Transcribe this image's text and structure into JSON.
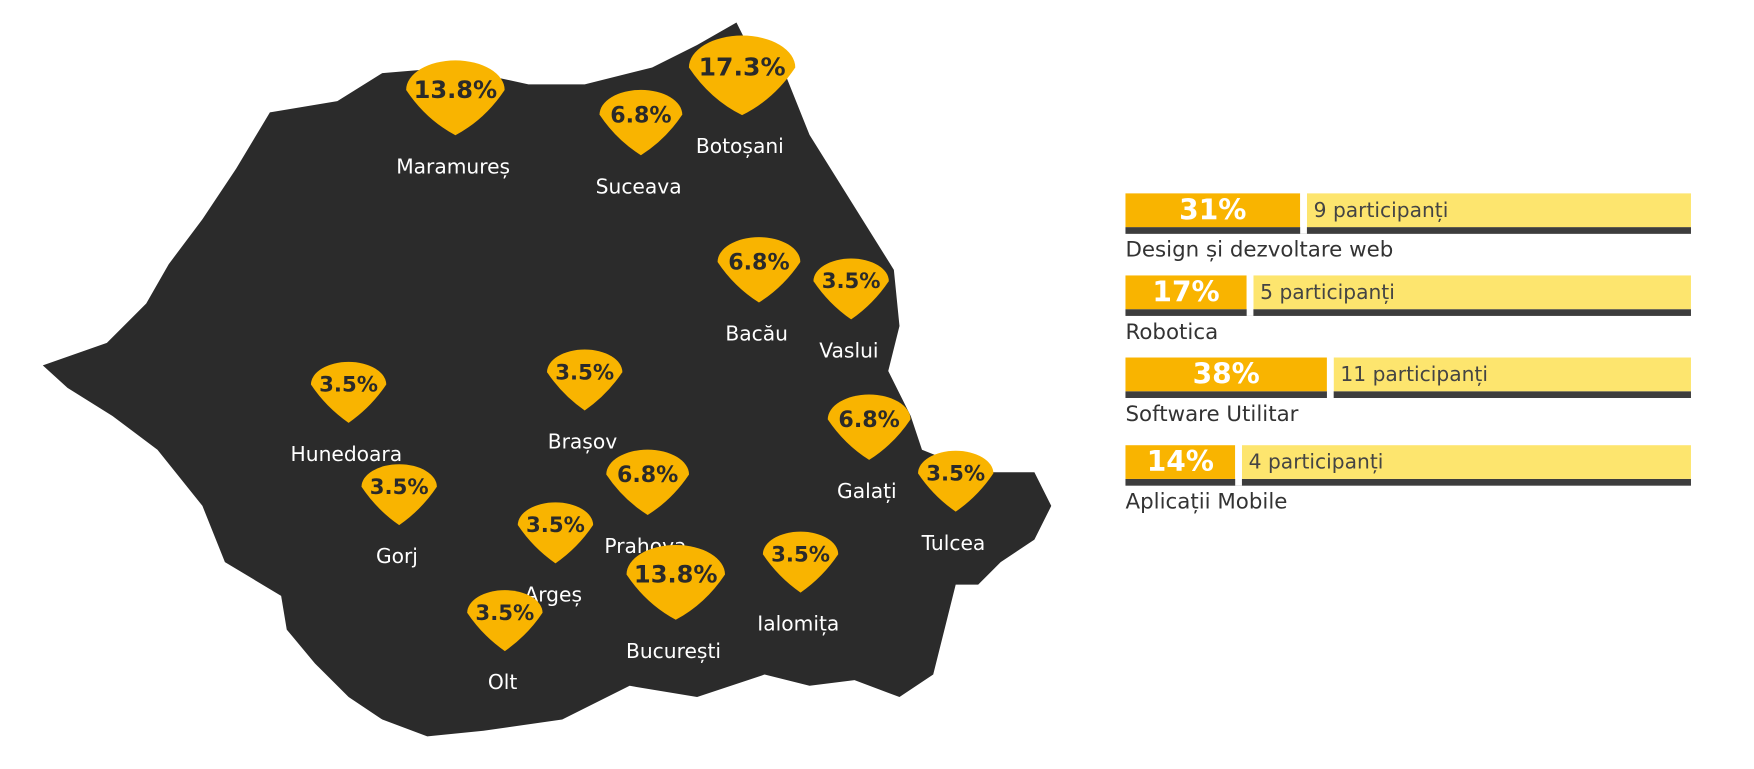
{
  "regions": [
    {
      "name": "Maramureș",
      "share": {
        "value": 13.8,
        "label": "13.8%"
      }
    },
    {
      "name": "Suceava",
      "share": {
        "value": 6.8,
        "label": "6.8%"
      }
    },
    {
      "name": "Botoșani",
      "share": {
        "value": 17.3,
        "label": "17.3%"
      }
    },
    {
      "name": "Bacău",
      "share": {
        "value": 6.8,
        "label": "6.8%"
      }
    },
    {
      "name": "Vaslui",
      "share": {
        "value": 3.5,
        "label": "3.5%"
      }
    },
    {
      "name": "Hunedoara",
      "share": {
        "value": 3.5,
        "label": "3.5%"
      }
    },
    {
      "name": "Brașov",
      "share": {
        "value": 3.5,
        "label": "3.5%"
      }
    },
    {
      "name": "Galați",
      "share": {
        "value": 6.8,
        "label": "6.8%"
      }
    },
    {
      "name": "Tulcea",
      "share": {
        "value": 3.5,
        "label": "3.5%"
      }
    },
    {
      "name": "Gorj",
      "share": {
        "value": 3.5,
        "label": "3.5%"
      }
    },
    {
      "name": "Prahova",
      "share": {
        "value": 6.8,
        "label": "6.8%"
      }
    },
    {
      "name": "Argeș",
      "share": {
        "value": 3.5,
        "label": "3.5%"
      }
    },
    {
      "name": "București",
      "share": {
        "value": 13.8,
        "label": "13.8%"
      }
    },
    {
      "name": "Ialomița",
      "share": {
        "value": 3.5,
        "label": "3.5%"
      }
    },
    {
      "name": "Olt",
      "share": {
        "value": 3.5,
        "label": "3.5%"
      }
    }
  ],
  "sections": [
    {
      "name": "Design și dezvoltare web",
      "share": {
        "value": 31,
        "label": "31%"
      },
      "participants": "9 participanți"
    },
    {
      "name": "Robotica",
      "share": {
        "value": 17,
        "label": "17%"
      },
      "participants": "5 participanți"
    },
    {
      "name": "Software Utilitar",
      "share": {
        "value": 38,
        "label": "38%"
      },
      "participants": "11 participanți"
    },
    {
      "name": "Aplicații Mobile",
      "share": {
        "value": 14,
        "label": "14%"
      },
      "participants": "4 participanți"
    }
  ]
}
